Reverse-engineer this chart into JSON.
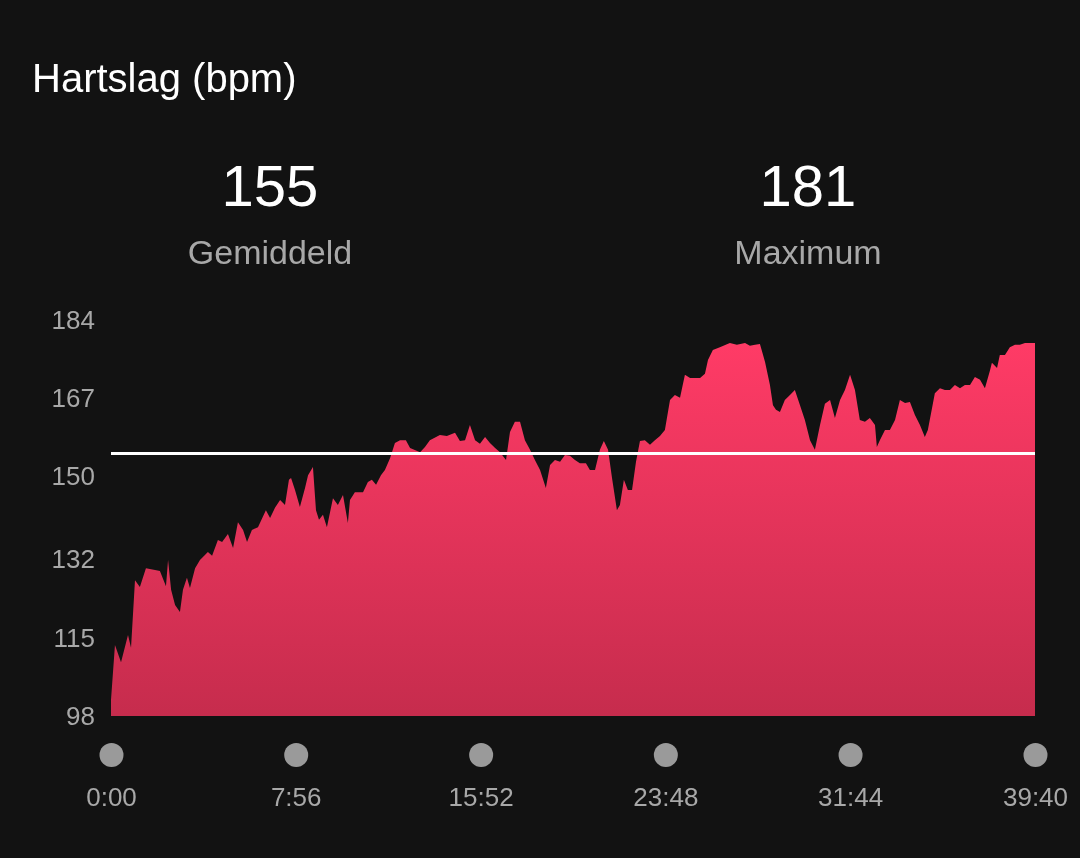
{
  "chart_data": {
    "type": "area",
    "title": "Hartslag (bpm)",
    "annotations": [
      "155",
      "Gemiddeld",
      "181",
      "Maximum"
    ],
    "xlim": [
      0,
      39.67
    ],
    "xticks": [
      {
        "value": 0,
        "label": "0:00"
      },
      {
        "value": 7.93,
        "label": "7:56"
      },
      {
        "value": 15.87,
        "label": "15:52"
      },
      {
        "value": 23.8,
        "label": "23:48"
      },
      {
        "value": 31.73,
        "label": "31:44"
      },
      {
        "value": 39.67,
        "label": "39:40"
      }
    ],
    "ylim": [
      98,
      184
    ],
    "yticks": [
      98,
      115,
      132,
      150,
      167,
      184
    ],
    "grid": false,
    "marker": "none",
    "ref_lines": [
      {
        "axis": "y",
        "value": 155,
        "color": "#ffffff"
      }
    ],
    "series": [
      {
        "color": "#e8345a",
        "x": [
          0,
          0.17,
          0.43,
          0.73,
          0.86,
          1.03,
          1.24,
          1.5,
          1.89,
          2.1,
          2.36,
          2.45,
          2.58,
          2.75,
          2.96,
          3.09,
          3.26,
          3.39,
          3.61,
          3.82,
          4.16,
          4.34,
          4.59,
          4.77,
          5.02,
          5.24,
          5.45,
          5.67,
          5.84,
          6.05,
          6.31,
          6.65,
          6.83,
          7.04,
          7.26,
          7.47,
          7.64,
          7.73,
          7.9,
          8.11,
          8.33,
          8.46,
          8.67,
          8.8,
          8.93,
          9.1,
          9.27,
          9.53,
          9.74,
          9.96,
          10.17,
          10.26,
          10.47,
          10.82,
          11.03,
          11.2,
          11.38,
          11.59,
          11.76,
          11.98,
          12.19,
          12.41,
          12.66,
          12.84,
          13.27,
          13.48,
          13.69,
          14.12,
          14.42,
          14.77,
          14.98,
          15.2,
          15.41,
          15.63,
          15.84,
          16.06,
          16.27,
          16.49,
          16.7,
          16.96,
          17.13,
          17.34,
          17.56,
          17.77,
          17.99,
          18.2,
          18.42,
          18.67,
          18.85,
          19.06,
          19.28,
          19.49,
          19.7,
          19.92,
          20.13,
          20.39,
          20.56,
          20.78,
          20.99,
          21.16,
          21.34,
          21.51,
          21.72,
          21.85,
          22.02,
          22.19,
          22.37,
          22.54,
          22.71,
          22.92,
          23.14,
          23.35,
          23.57,
          23.78,
          24,
          24.21,
          24.43,
          24.64,
          24.86,
          25.29,
          25.5,
          25.63,
          25.84,
          26.14,
          26.57,
          26.87,
          27.22,
          27.43,
          27.65,
          27.86,
          28.08,
          28.29,
          28.42,
          28.55,
          28.72,
          28.93,
          29.15,
          29.36,
          29.58,
          29.79,
          30.01,
          30.22,
          30.44,
          30.65,
          30.87,
          31.08,
          31.3,
          31.51,
          31.73,
          31.94,
          32.15,
          32.37,
          32.58,
          32.8,
          32.88,
          33.01,
          33.23,
          33.44,
          33.66,
          33.87,
          34.09,
          34.3,
          34.51,
          34.73,
          34.94,
          35.07,
          35.25,
          35.37,
          35.59,
          35.8,
          36.02,
          36.23,
          36.45,
          36.66,
          36.88,
          37.09,
          37.31,
          37.52,
          37.74,
          37.82,
          38.04,
          38.16,
          38.38,
          38.59,
          38.81,
          39.02,
          39.24,
          39.45,
          39.67
        ],
        "values": [
          101.5,
          113.4,
          109.7,
          115.6,
          112.8,
          127.5,
          126,
          130.1,
          129.7,
          129.5,
          126.2,
          131.9,
          125.4,
          122.1,
          120.6,
          125.4,
          128,
          125.8,
          130.1,
          131.9,
          133.6,
          132.8,
          136.2,
          135.8,
          137.5,
          134.5,
          140.1,
          138.4,
          135.8,
          138.4,
          139,
          142.7,
          141,
          143.2,
          144.9,
          143.8,
          149.3,
          149.7,
          147.1,
          143.4,
          147.5,
          150.3,
          152.1,
          142.7,
          140.6,
          141.7,
          139,
          145.3,
          143.8,
          146,
          139.9,
          144.9,
          146.6,
          146.6,
          148.8,
          149.3,
          148.2,
          150.3,
          151.4,
          154,
          157.3,
          157.9,
          157.9,
          156.2,
          155.3,
          156.4,
          157.9,
          159,
          158.8,
          159.5,
          157.7,
          157.9,
          161.2,
          157.9,
          157.1,
          158.6,
          157.3,
          156.2,
          155.3,
          153.6,
          159.7,
          161.9,
          161.9,
          157.9,
          155.8,
          153.6,
          151.4,
          147.5,
          152.5,
          153.6,
          153.2,
          154.7,
          154.5,
          153.6,
          152.9,
          152.9,
          151.4,
          151.4,
          155.8,
          157.7,
          155.8,
          149.7,
          142.7,
          143.8,
          149.3,
          147.1,
          147.1,
          153.2,
          157.7,
          157.9,
          156.9,
          157.9,
          158.8,
          160.1,
          166.6,
          167.7,
          167.1,
          172.1,
          171.4,
          171.4,
          172.3,
          175.3,
          177.5,
          178.1,
          179,
          178.6,
          179,
          178.4,
          178.6,
          178.8,
          174.9,
          169.9,
          165.5,
          164.5,
          164,
          166.6,
          167.7,
          168.8,
          165.5,
          162.3,
          157.9,
          155.8,
          161.2,
          165.8,
          166.6,
          162.7,
          166.6,
          168.8,
          172.1,
          168.8,
          162.3,
          161.9,
          162.7,
          161.2,
          156.4,
          157.9,
          160.1,
          160.1,
          162.3,
          166.6,
          166,
          166.2,
          163.4,
          161.2,
          158.6,
          160.1,
          164.9,
          168.1,
          169.2,
          168.8,
          168.8,
          169.9,
          169.2,
          169.9,
          169.9,
          171.6,
          171,
          169.2,
          173.1,
          174.7,
          173.6,
          176.4,
          176.4,
          178.1,
          178.6,
          178.6,
          179,
          179,
          179
        ]
      }
    ]
  }
}
